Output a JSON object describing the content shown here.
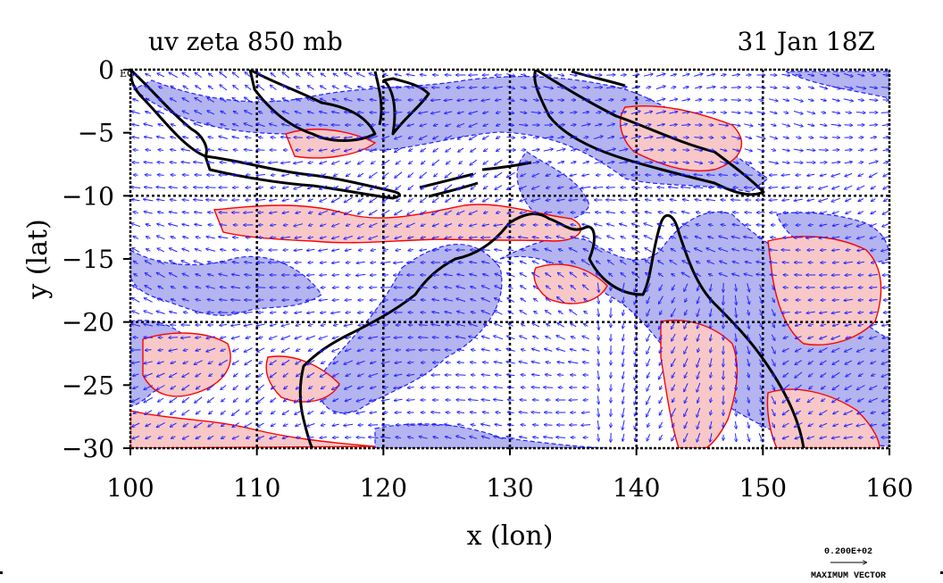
{
  "title_left": "uv zeta 850 mb",
  "title_right": "31 Jan 18Z",
  "map": {
    "lon_range": [
      100,
      160
    ],
    "lat_range": [
      -30,
      0
    ],
    "x_ticks": [
      "100",
      "110",
      "120",
      "130",
      "140",
      "150",
      "160"
    ],
    "y_ticks": [
      "0",
      "−5",
      "−10",
      "−15",
      "−20",
      "−25",
      "−30"
    ],
    "equator_label": "EQ",
    "xlabel": "x (lon)",
    "ylabel": "y (lat)",
    "grid_lon": [
      110,
      120,
      130,
      140,
      150
    ],
    "grid_lat": [
      -10,
      -20
    ]
  },
  "legend": {
    "value": "0.200E+02",
    "label": "MAXIMUM VECTOR"
  },
  "colors": {
    "positive_fill": "#f8c8c8",
    "positive_line": "#ff0000",
    "negative_fill": "#b4b4f0",
    "negative_line": "#2020ff",
    "vector": "#2020ff",
    "coast": "#000000"
  }
}
